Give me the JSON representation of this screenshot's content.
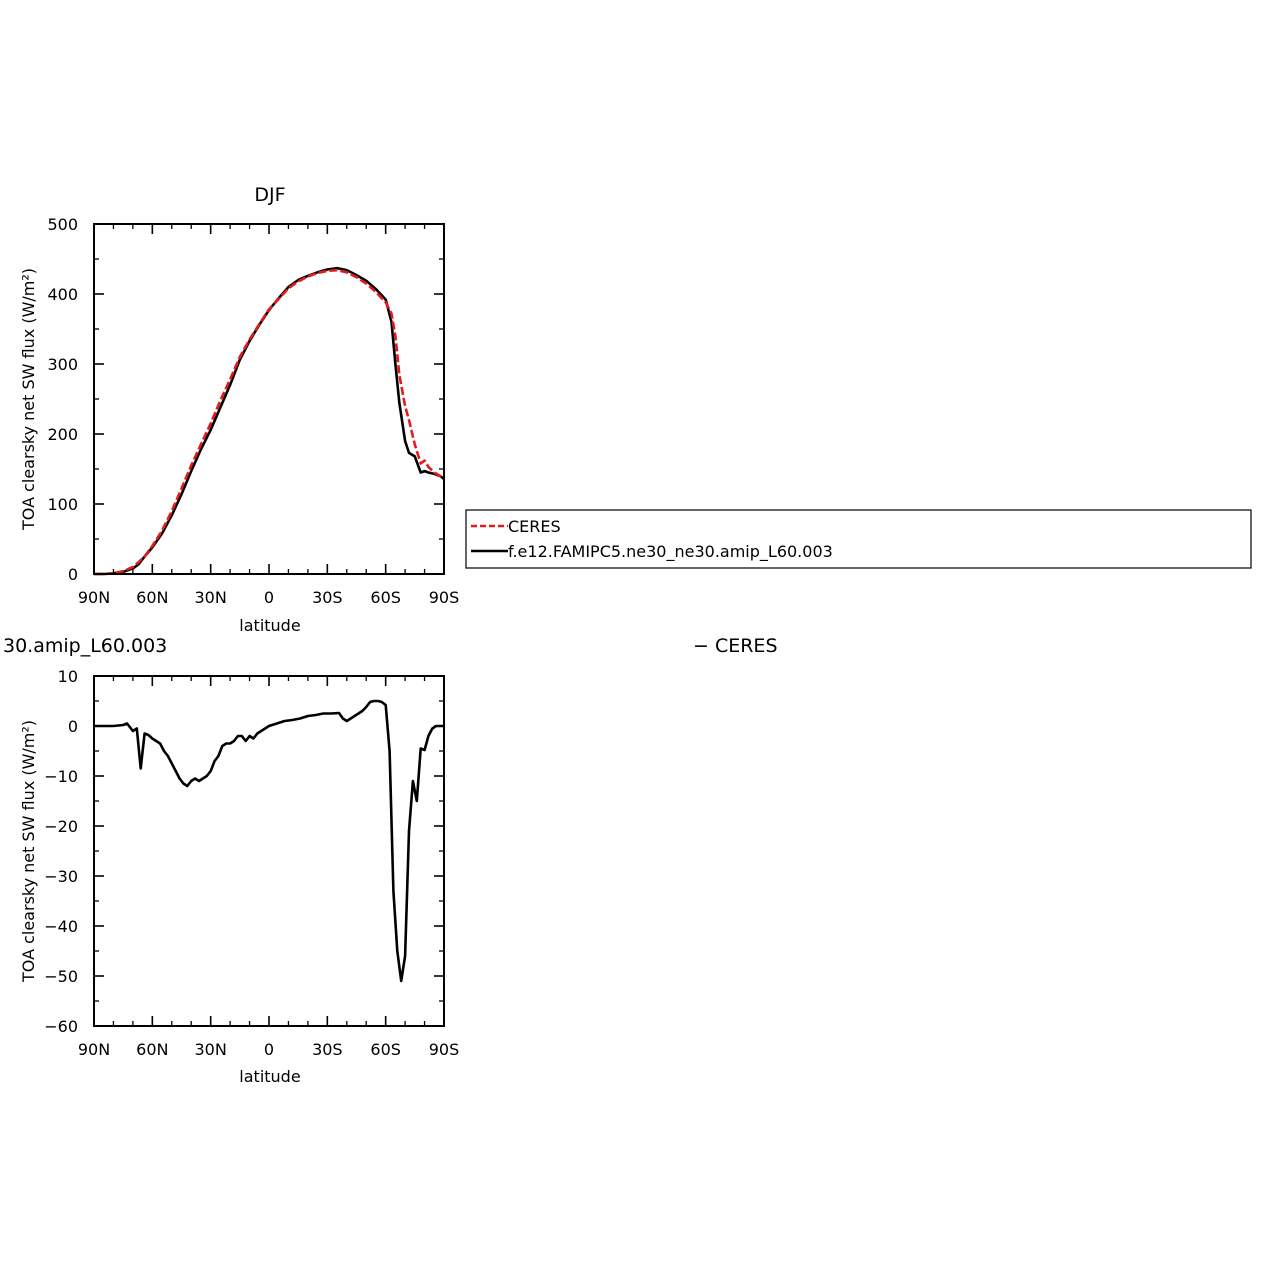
{
  "colors": {
    "ceres": "#e41a1c",
    "model": "#000000",
    "axis": "#000000"
  },
  "chart_data": [
    {
      "type": "line",
      "title": "DJF",
      "xlabel": "latitude",
      "ylabel": "TOA clearsky net SW flux (W/m²)",
      "xlim": [
        90,
        -90
      ],
      "ylim": [
        0,
        500
      ],
      "yticks": [
        0,
        100,
        200,
        300,
        400,
        500
      ],
      "ytick_labels": [
        "0",
        "100",
        "200",
        "300",
        "400",
        "500"
      ],
      "xticks": [
        90,
        60,
        30,
        0,
        -30,
        -60,
        -90
      ],
      "xtick_labels": [
        "90N",
        "60N",
        "30N",
        "0",
        "30S",
        "60S",
        "90S"
      ],
      "legend": {
        "placement": "right",
        "entries": [
          "CERES",
          "f.e12.FAMIPC5.ne30_ne30.amip_L60.003"
        ]
      },
      "series": [
        {
          "name": "CERES",
          "style": "dashed",
          "x": [
            90,
            85,
            80,
            75,
            70,
            67,
            64,
            60,
            55,
            50,
            45,
            40,
            35,
            30,
            25,
            20,
            15,
            10,
            5,
            0,
            -5,
            -10,
            -15,
            -20,
            -25,
            -30,
            -35,
            -40,
            -45,
            -50,
            -55,
            -60,
            -63,
            -65,
            -67,
            -70,
            -72,
            -75,
            -78,
            -80,
            -82,
            -85,
            -88,
            -90
          ],
          "values": [
            0,
            0,
            1,
            4,
            10,
            17,
            25,
            40,
            62,
            90,
            122,
            155,
            185,
            215,
            248,
            278,
            310,
            335,
            357,
            378,
            393,
            408,
            418,
            425,
            430,
            433,
            434,
            431,
            424,
            415,
            403,
            388,
            372,
            340,
            285,
            240,
            220,
            185,
            158,
            162,
            153,
            145,
            140,
            135
          ]
        },
        {
          "name": "f.e12.FAMIPC5.ne30_ne30.amip_L60.003",
          "style": "solid",
          "x": [
            90,
            85,
            80,
            75,
            70,
            67,
            64,
            60,
            55,
            50,
            45,
            40,
            35,
            30,
            25,
            20,
            15,
            10,
            5,
            0,
            -5,
            -10,
            -15,
            -20,
            -25,
            -30,
            -35,
            -40,
            -45,
            -50,
            -55,
            -60,
            -63,
            -65,
            -67,
            -70,
            -72,
            -75,
            -78,
            -80,
            -82,
            -85,
            -88,
            -90
          ],
          "values": [
            0,
            0,
            1,
            3,
            8,
            14,
            25,
            38,
            58,
            84,
            114,
            147,
            178,
            206,
            238,
            270,
            306,
            333,
            356,
            377,
            394,
            410,
            420,
            426,
            431,
            435,
            437,
            434,
            427,
            419,
            407,
            392,
            360,
            300,
            245,
            190,
            173,
            168,
            145,
            147,
            145,
            143,
            140,
            136
          ]
        }
      ]
    },
    {
      "type": "line",
      "title": "30.amip_L60.003",
      "title_right": "− CERES",
      "xlabel": "latitude",
      "ylabel": "TOA clearsky net SW flux (W/m²)",
      "xlim": [
        90,
        -90
      ],
      "ylim": [
        -60,
        10
      ],
      "yticks": [
        -60,
        -50,
        -40,
        -30,
        -20,
        -10,
        0,
        10
      ],
      "ytick_labels": [
        "−60",
        "−50",
        "−40",
        "−30",
        "−20",
        "−10",
        "0",
        "10"
      ],
      "xticks": [
        90,
        60,
        30,
        0,
        -30,
        -60,
        -90
      ],
      "xtick_labels": [
        "90N",
        "60N",
        "30N",
        "0",
        "30S",
        "60S",
        "90S"
      ],
      "series": [
        {
          "style": "solid",
          "x": [
            90,
            80,
            75,
            73,
            70,
            68,
            66,
            64,
            62,
            60,
            58,
            56,
            54,
            52,
            50,
            48,
            46,
            44,
            42,
            40,
            38,
            36,
            34,
            32,
            30,
            28,
            26,
            24,
            22,
            20,
            18,
            16,
            14,
            12,
            10,
            8,
            6,
            4,
            2,
            0,
            -4,
            -8,
            -12,
            -16,
            -20,
            -24,
            -28,
            -32,
            -36,
            -38,
            -40,
            -44,
            -48,
            -50,
            -52,
            -54,
            -56,
            -58,
            -60,
            -62,
            -64,
            -66,
            -68,
            -70,
            -72,
            -74,
            -76,
            -78,
            -80,
            -82,
            -84,
            -86,
            -88,
            -90
          ],
          "values": [
            0,
            0,
            0.2,
            0.5,
            -1,
            -0.5,
            -8.5,
            -1.5,
            -1.8,
            -2.5,
            -3,
            -3.5,
            -5,
            -6,
            -7.5,
            -9,
            -10.5,
            -11.5,
            -12,
            -11,
            -10.5,
            -11,
            -10.5,
            -10,
            -9,
            -7,
            -6,
            -4,
            -3.5,
            -3.5,
            -3,
            -2,
            -2,
            -3,
            -2,
            -2.5,
            -1.5,
            -1,
            -0.5,
            0,
            0.5,
            1,
            1.2,
            1.5,
            2,
            2.2,
            2.5,
            2.5,
            2.6,
            1.5,
            1,
            2,
            3,
            3.8,
            4.8,
            5,
            5,
            4.8,
            4.2,
            -5,
            -33,
            -45,
            -51,
            -46,
            -21,
            -11,
            -15,
            -4.5,
            -4.8,
            -2,
            -0.5,
            0,
            0,
            0
          ]
        }
      ]
    }
  ]
}
